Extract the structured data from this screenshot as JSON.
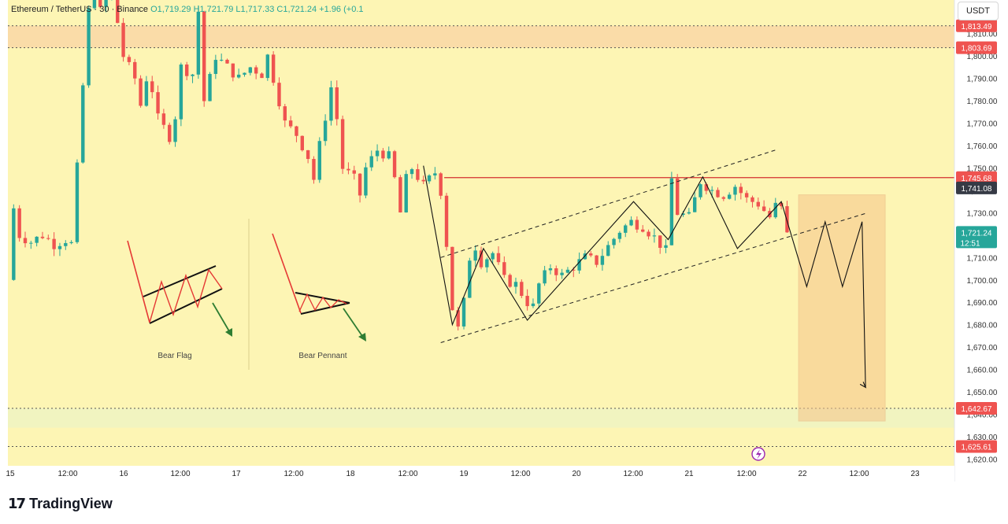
{
  "header": {
    "symbol": "Ethereum / TetherUS · 30 · Binance",
    "open": "O1,719.29",
    "high": "H1,721.79",
    "low": "L1,717.33",
    "close": "C1,721.24",
    "change": "+1.96 (+0.1",
    "currency": "USDT"
  },
  "footer": {
    "brand": "TradingView",
    "mark": "17"
  },
  "colors": {
    "background": "#fdf5b4",
    "up": "#26a69a",
    "down": "#ef5350",
    "resistance": "#d32f2f",
    "zone": "#f9d9a6",
    "support_zone": "#f1f4c0"
  },
  "icons": {
    "alert": "lightning-icon"
  },
  "chart_data": {
    "type": "candlestick",
    "symbol": "ETHUSDT",
    "interval": "30",
    "ylim": [
      1617,
      1825
    ],
    "y_ticks": [
      "1,810.00",
      "1,800.00",
      "1,790.00",
      "1,780.00",
      "1,770.00",
      "1,760.00",
      "1,750.00",
      "1,740.00",
      "1,730.00",
      "1,720.00",
      "1,710.00",
      "1,700.00",
      "1,690.00",
      "1,680.00",
      "1,670.00",
      "1,660.00",
      "1,650.00",
      "1,640.00",
      "1,630.00",
      "1,620.00"
    ],
    "y_tick_values": [
      1810,
      1800,
      1790,
      1780,
      1770,
      1760,
      1750,
      1740,
      1730,
      1720,
      1710,
      1700,
      1690,
      1680,
      1670,
      1660,
      1650,
      1640,
      1630,
      1620
    ],
    "x_ticks": [
      "15",
      "12:00",
      "16",
      "12:00",
      "17",
      "12:00",
      "18",
      "12:00",
      "19",
      "12:00",
      "20",
      "12:00",
      "21",
      "12:00",
      "22",
      "12:00",
      "23"
    ],
    "price_labels": [
      {
        "text": "1,813.49",
        "value": 1813.49,
        "color": "#ef5350"
      },
      {
        "text": "1,803.69",
        "value": 1803.69,
        "color": "#ef5350"
      },
      {
        "text": "1,745.68",
        "value": 1745.68,
        "color": "#ef5350"
      },
      {
        "text": "1,741.08",
        "value": 1741.08,
        "color": "#363a45"
      },
      {
        "text": "1,721.24",
        "value": 1721.24,
        "color": "#26a69a"
      },
      {
        "text": "1,642.67",
        "value": 1642.67,
        "color": "#ef5350"
      },
      {
        "text": "1,625.61",
        "value": 1625.61,
        "color": "#ef5350"
      }
    ],
    "countdown": "12:51",
    "levels": {
      "top_zone": [
        1803.69,
        1813.49
      ],
      "resistance": 1745.68,
      "support_zone": [
        1634,
        1642.67
      ],
      "support_low": 1625.61
    },
    "close_path": [
      [
        0,
        1700
      ],
      [
        0.5,
        1732
      ],
      [
        1,
        1720
      ],
      [
        2,
        1717
      ],
      [
        3,
        1720
      ],
      [
        4,
        1716
      ],
      [
        5,
        1718
      ],
      [
        5.5,
        1716
      ],
      [
        6,
        1750
      ],
      [
        6.3,
        1770
      ],
      [
        6.6,
        1795
      ],
      [
        7,
        1820
      ],
      [
        7.5,
        1830
      ],
      [
        8,
        1820
      ],
      [
        9,
        1830
      ],
      [
        10,
        1800
      ],
      [
        11,
        1790
      ],
      [
        11.5,
        1778
      ],
      [
        12,
        1790
      ],
      [
        12.5,
        1785
      ],
      [
        13,
        1772
      ],
      [
        14,
        1764
      ],
      [
        14.6,
        1775
      ],
      [
        15,
        1795
      ],
      [
        16,
        1792
      ],
      [
        16.5,
        1820
      ],
      [
        17,
        1780
      ],
      [
        17.5,
        1790
      ],
      [
        18,
        1800
      ],
      [
        19,
        1795
      ],
      [
        20,
        1790
      ],
      [
        21,
        1795
      ],
      [
        22,
        1792
      ],
      [
        22.5,
        1800
      ],
      [
        23,
        1790
      ],
      [
        24,
        1770
      ],
      [
        25,
        1765
      ],
      [
        26,
        1755
      ],
      [
        26.5,
        1745
      ],
      [
        27,
        1760
      ],
      [
        28,
        1786
      ],
      [
        28.5,
        1772
      ],
      [
        29,
        1750
      ],
      [
        30,
        1745
      ],
      [
        30.5,
        1738
      ],
      [
        31,
        1750
      ],
      [
        32,
        1758
      ],
      [
        33,
        1755
      ],
      [
        33.5,
        1745
      ],
      [
        34,
        1730
      ],
      [
        34.5,
        1745
      ],
      [
        35,
        1750
      ],
      [
        36,
        1742
      ],
      [
        37,
        1748
      ],
      [
        37.6,
        1738
      ],
      [
        38,
        1716
      ],
      [
        38.3,
        1692
      ],
      [
        38.6,
        1685
      ],
      [
        39,
        1678
      ],
      [
        39.5,
        1690
      ],
      [
        40,
        1710
      ],
      [
        40.5,
        1715
      ],
      [
        41,
        1708
      ],
      [
        42,
        1712
      ],
      [
        43,
        1700
      ],
      [
        44,
        1698
      ],
      [
        45,
        1690
      ],
      [
        45.5,
        1688
      ],
      [
        46,
        1698
      ],
      [
        47,
        1706
      ],
      [
        48,
        1702
      ],
      [
        49,
        1706
      ],
      [
        50,
        1710
      ],
      [
        51,
        1708
      ],
      [
        52,
        1715
      ],
      [
        53,
        1722
      ],
      [
        54,
        1726
      ],
      [
        55,
        1724
      ],
      [
        56,
        1719
      ],
      [
        57,
        1713
      ],
      [
        57.3,
        1728
      ],
      [
        57.5,
        1745
      ],
      [
        58,
        1730
      ],
      [
        59,
        1728
      ],
      [
        60,
        1744
      ],
      [
        61,
        1740
      ],
      [
        62,
        1738
      ],
      [
        63,
        1742
      ],
      [
        64,
        1736
      ],
      [
        65,
        1734
      ],
      [
        66,
        1728
      ],
      [
        66.8,
        1736
      ],
      [
        67.5,
        1721.24
      ]
    ],
    "channel_upper": [
      [
        37.5,
        1710
      ],
      [
        66.5,
        1758
      ]
    ],
    "channel_lower": [
      [
        37.5,
        1672
      ],
      [
        74.5,
        1730
      ]
    ],
    "projection_zigzag": [
      [
        36,
        1751
      ],
      [
        38.5,
        1680
      ],
      [
        41.2,
        1714
      ],
      [
        45,
        1682
      ],
      [
        54.2,
        1735
      ],
      [
        57.2,
        1718
      ],
      [
        60.2,
        1746
      ],
      [
        63.2,
        1714
      ],
      [
        67,
        1735
      ],
      [
        69.2,
        1697
      ],
      [
        70.8,
        1726
      ],
      [
        72.3,
        1697
      ],
      [
        74,
        1726
      ],
      [
        74.3,
        1652
      ]
    ],
    "target_zone": {
      "x0": 68.5,
      "x1": 76,
      "y0": 1637,
      "y1": 1738
    },
    "x_span": [
      0,
      82
    ],
    "annotations": [
      {
        "text": "Bear Flag",
        "label_key": "bear_flag"
      },
      {
        "text": "Bear Pennant",
        "label_key": "bear_pennant"
      }
    ]
  },
  "diagram_labels": {
    "bear_flag": "Bear Flag",
    "bear_pennant": "Bear Pennant"
  }
}
